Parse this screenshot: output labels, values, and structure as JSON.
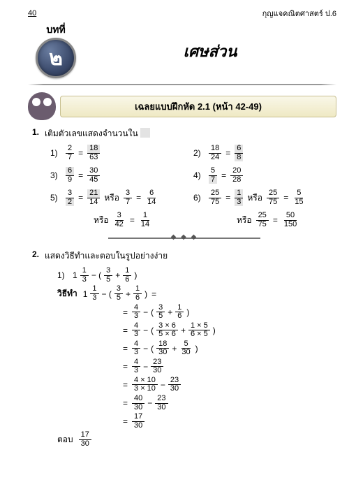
{
  "page_number": "40",
  "book_series": "กุญแจคณิตศาสตร์ ป.6",
  "chapter_label": "บทที่",
  "chapter_number": "๒",
  "chapter_title": "เศษส่วน",
  "banner_text": "เฉลยแบบฝึกหัด 2.1 (หน้า 42-49)",
  "q1": {
    "num": "1.",
    "stem": "เติมตัวเลขแสดงจำนวนใน",
    "items": [
      {
        "n": "1)",
        "lhs": {
          "n": "2",
          "d": "7"
        },
        "rhs": {
          "n": "18",
          "d": "63",
          "box": "n"
        }
      },
      {
        "n": "2)",
        "lhs": {
          "n": "18",
          "d": "24"
        },
        "rhs": {
          "n": "6",
          "d": "8",
          "box": "b"
        }
      },
      {
        "n": "3)",
        "lhs": {
          "n": "6",
          "d": "9",
          "box": "n"
        },
        "rhs": {
          "n": "30",
          "d": "45"
        }
      },
      {
        "n": "4)",
        "lhs": {
          "n": "5",
          "d": "7",
          "box": "d"
        },
        "rhs": {
          "n": "20",
          "d": "28"
        }
      },
      {
        "n": "5)",
        "lhs": {
          "n": "3",
          "d": "2",
          "box": "d"
        },
        "rhs": {
          "n": "21",
          "d": "14",
          "box": "n"
        },
        "or1": {
          "lhs": {
            "n": "3",
            "d": "7"
          },
          "rhs": {
            "n": "6",
            "d": "14"
          }
        },
        "or2": {
          "lhs": {
            "n": "3",
            "d": "42"
          },
          "rhs": {
            "n": "1",
            "d": "14"
          }
        }
      },
      {
        "n": "6)",
        "lhs": {
          "n": "25",
          "d": "75"
        },
        "rhs": {
          "n": "1",
          "d": "3",
          "box": "b"
        },
        "or1": {
          "lhs": {
            "n": "25",
            "d": "75"
          },
          "rhs": {
            "n": "5",
            "d": "15"
          }
        },
        "or2": {
          "lhs": {
            "n": "25",
            "d": "75"
          },
          "rhs": {
            "n": "50",
            "d": "150"
          }
        }
      }
    ],
    "or_word": "หรือ"
  },
  "q2": {
    "num": "2.",
    "stem": "แสดงวิธีทำและตอบในรูปอย่างง่าย",
    "problem_label": "1)",
    "mixed_whole": "1",
    "mixed_frac": {
      "n": "1",
      "d": "3"
    },
    "minus_frac1": {
      "n": "3",
      "d": "5"
    },
    "minus_frac2": {
      "n": "1",
      "d": "6"
    },
    "method_word": "วิธีทำ",
    "answer_word": "ตอบ",
    "steps": [
      {
        "left": [
          {
            "t": "frac",
            "n": "4",
            "d": "3"
          },
          {
            "t": "txt",
            "v": "−"
          },
          {
            "t": "txt",
            "v": "("
          },
          {
            "t": "frac",
            "n": "3",
            "d": "5"
          },
          {
            "t": "txt",
            "v": "+"
          },
          {
            "t": "frac",
            "n": "1",
            "d": "6"
          },
          {
            "t": "txt",
            "v": ")"
          }
        ]
      },
      {
        "left": [
          {
            "t": "frac",
            "n": "4",
            "d": "3"
          },
          {
            "t": "txt",
            "v": "−"
          },
          {
            "t": "txt",
            "v": "("
          },
          {
            "t": "frac",
            "n": "3 × 6",
            "d": "5 × 6"
          },
          {
            "t": "txt",
            "v": "+"
          },
          {
            "t": "frac",
            "n": "1 × 5",
            "d": "6 × 5"
          },
          {
            "t": "txt",
            "v": ")"
          }
        ]
      },
      {
        "left": [
          {
            "t": "frac",
            "n": "4",
            "d": "3"
          },
          {
            "t": "txt",
            "v": "−"
          },
          {
            "t": "txt",
            "v": "("
          },
          {
            "t": "frac",
            "n": "18",
            "d": "30"
          },
          {
            "t": "txt",
            "v": "+"
          },
          {
            "t": "frac",
            "n": "5",
            "d": "30"
          },
          {
            "t": "txt",
            "v": ")"
          }
        ]
      },
      {
        "left": [
          {
            "t": "frac",
            "n": "4",
            "d": "3"
          },
          {
            "t": "txt",
            "v": "−"
          },
          {
            "t": "frac",
            "n": "23",
            "d": "30"
          }
        ]
      },
      {
        "left": [
          {
            "t": "frac",
            "n": "4 × 10",
            "d": "3 × 10"
          },
          {
            "t": "txt",
            "v": "−"
          },
          {
            "t": "frac",
            "n": "23",
            "d": "30"
          }
        ]
      },
      {
        "left": [
          {
            "t": "frac",
            "n": "40",
            "d": "30"
          },
          {
            "t": "txt",
            "v": "−"
          },
          {
            "t": "frac",
            "n": "23",
            "d": "30"
          }
        ]
      },
      {
        "left": [
          {
            "t": "frac",
            "n": "17",
            "d": "30"
          }
        ]
      }
    ],
    "answer": {
      "n": "17",
      "d": "30"
    }
  }
}
